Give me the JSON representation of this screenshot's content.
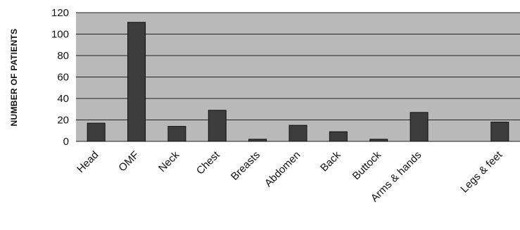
{
  "chart_data": {
    "type": "bar",
    "title": "",
    "xlabel": "",
    "ylabel": "NUMBER OF PATIENTS",
    "categories": [
      "Head",
      "OMF",
      "Neck",
      "Chest",
      "Breasts",
      "Abdomen",
      "Back",
      "Buttock",
      "Arms & hands",
      "",
      "Legs & feet"
    ],
    "values": [
      17,
      111,
      14,
      29,
      2,
      15,
      9,
      2,
      27,
      0,
      18
    ],
    "ylim": [
      0,
      120
    ],
    "yticks": [
      0,
      20,
      40,
      60,
      80,
      100,
      120
    ],
    "grid": true,
    "legend": "none",
    "colors": {
      "plot_background": "#b9b9b9",
      "bar": "#3d3d3d",
      "gridline": "#222222"
    }
  }
}
